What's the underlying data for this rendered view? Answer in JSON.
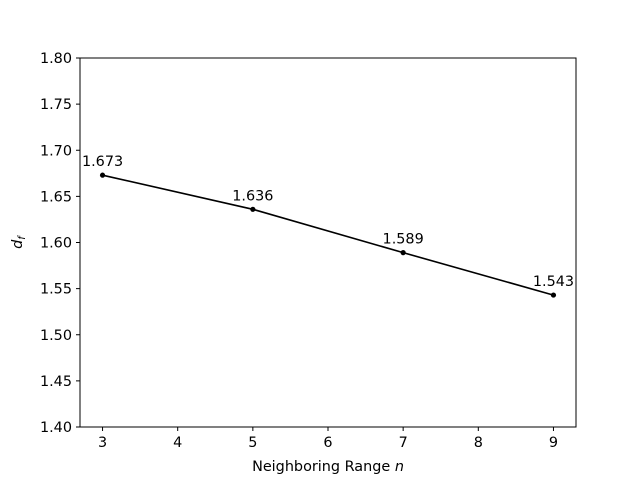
{
  "chart_data": {
    "type": "line",
    "title": "",
    "xlabel": "Neighboring Range",
    "xlabel_var": "n",
    "ylabel": "d",
    "ylabel_sub": "f",
    "x": [
      3,
      5,
      7,
      9
    ],
    "series": [
      {
        "values": [
          1.673,
          1.636,
          1.589,
          1.543
        ],
        "labels": [
          "1.673",
          "1.636",
          "1.589",
          "1.543"
        ],
        "color": "#000000",
        "marker": "circle"
      }
    ],
    "xlim": [
      2.7,
      9.3
    ],
    "ylim": [
      1.4,
      1.8
    ],
    "xticks": [
      3,
      4,
      5,
      6,
      7,
      8,
      9
    ],
    "xtick_labels": [
      "3",
      "4",
      "5",
      "6",
      "7",
      "8",
      "9"
    ],
    "yticks": [
      1.4,
      1.45,
      1.5,
      1.55,
      1.6,
      1.65,
      1.7,
      1.75,
      1.8
    ],
    "ytick_labels": [
      "1.40",
      "1.45",
      "1.50",
      "1.55",
      "1.60",
      "1.65",
      "1.70",
      "1.75",
      "1.80"
    ],
    "grid": false,
    "legend": "none"
  }
}
